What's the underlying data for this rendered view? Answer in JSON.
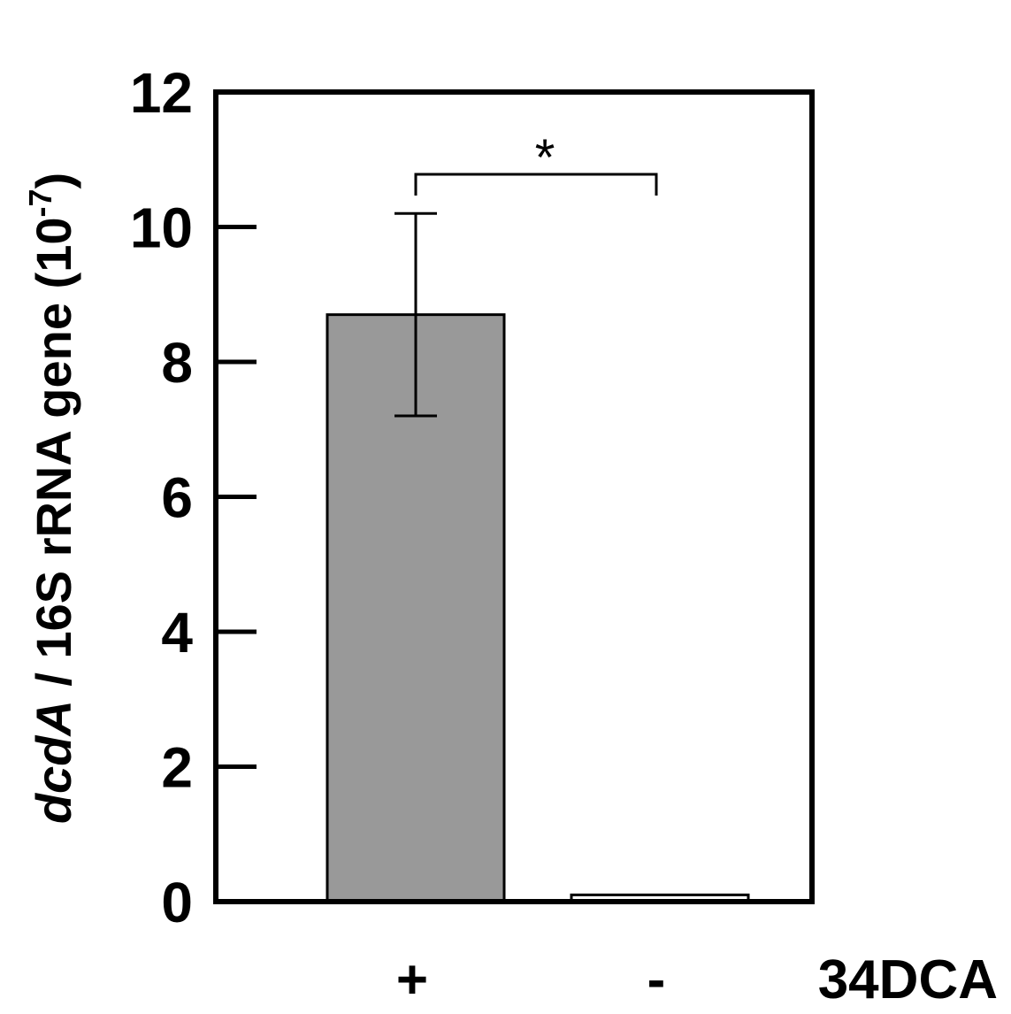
{
  "chart_data": {
    "type": "bar",
    "categories": [
      "+",
      "-"
    ],
    "values": [
      8.7,
      0.1
    ],
    "errors": [
      1.5,
      0
    ],
    "bar_colors": [
      "#999999",
      "#ffffff"
    ],
    "ylim": [
      0,
      12
    ],
    "yticks": [
      0,
      2,
      4,
      6,
      8,
      10,
      12
    ],
    "ylabel": {
      "italic": "dcdA",
      "rest": " / 16S rRNA gene (10",
      "exp": "-7",
      "close": ")"
    },
    "xlabel": "34DCA",
    "significance": {
      "from": 0,
      "to": 1,
      "label": "*"
    },
    "grid": false
  }
}
